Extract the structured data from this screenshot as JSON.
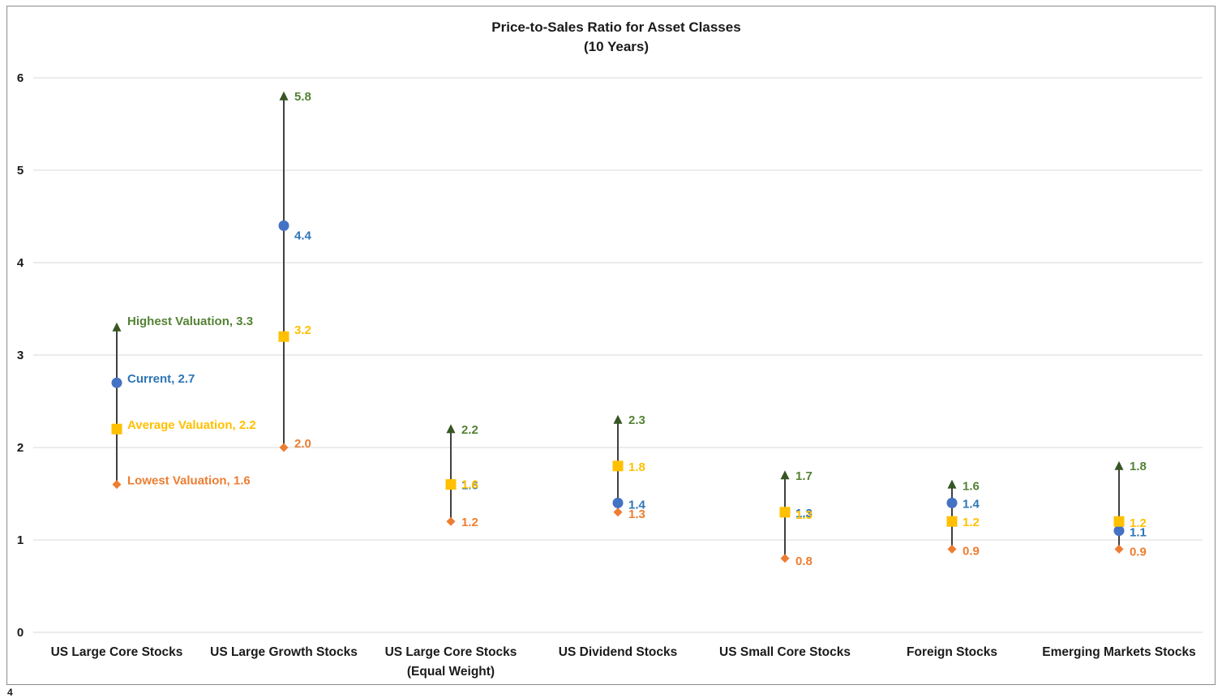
{
  "chart_data": {
    "type": "scatter",
    "title": [
      "Price-to-Sales Ratio for Asset Classes",
      "(10 Years)"
    ],
    "xlabel": "",
    "ylabel": "",
    "ylim": [
      0,
      6
    ],
    "yticks": [
      "0",
      "1",
      "2",
      "3",
      "4",
      "5",
      "6"
    ],
    "grid": true,
    "legend": "none",
    "categories": [
      [
        "US Large Core Stocks"
      ],
      [
        "US Large Growth Stocks"
      ],
      [
        "US Large Core Stocks",
        "(Equal Weight)"
      ],
      [
        "US Dividend Stocks"
      ],
      [
        "US Small Core Stocks"
      ],
      [
        "Foreign Stocks"
      ],
      [
        "Emerging Markets Stocks"
      ]
    ],
    "series": [
      {
        "name": "Highest Valuation",
        "key": "high",
        "marker": "triangle",
        "color": "#548235",
        "values": [
          3.3,
          5.8,
          2.2,
          2.3,
          1.7,
          1.6,
          1.8
        ]
      },
      {
        "name": "Current",
        "key": "current",
        "marker": "circle",
        "color": "#4472c4",
        "label_color": "#2e75b6",
        "values": [
          2.7,
          4.4,
          1.6,
          1.4,
          1.3,
          1.4,
          1.1
        ]
      },
      {
        "name": "Average Valuation",
        "key": "average",
        "marker": "square",
        "color": "#ffc000",
        "values": [
          2.2,
          3.2,
          1.6,
          1.8,
          1.3,
          1.2,
          1.2
        ]
      },
      {
        "name": "Lowest Valuation",
        "key": "low",
        "marker": "diamond",
        "color": "#ed7d31",
        "values": [
          1.6,
          2.0,
          1.2,
          1.3,
          0.8,
          0.9,
          0.9
        ]
      }
    ],
    "data_labels": {
      "high": [
        "Highest Valuation, 3.3",
        "5.8",
        "2.2",
        "2.3",
        "1.7",
        "1.6",
        "1.8"
      ],
      "current": [
        "Current, 2.7",
        "4.4",
        "1.6",
        "1.4",
        "1.3",
        "1.4",
        "1.1"
      ],
      "average": [
        "Average Valuation, 2.2",
        "3.2",
        "1.6",
        "1.8",
        "1.3",
        "1.2",
        "1.2"
      ],
      "low": [
        "Lowest Valuation, 1.6",
        "2.0",
        "1.2",
        "1.3",
        "0.8",
        "0.9",
        "0.9"
      ]
    },
    "range_line_color": "#404040",
    "gridline_color": "#d9d9d9"
  },
  "page_number": "4"
}
